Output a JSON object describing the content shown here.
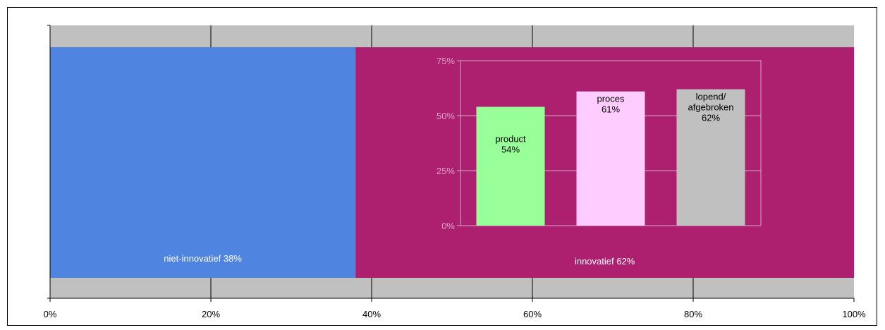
{
  "chart_data": [
    {
      "type": "bar",
      "orientation": "horizontal-stacked",
      "segments": [
        {
          "label": "niet-innovatief 38%",
          "value": 38,
          "color": "#4f84e0"
        },
        {
          "label": "innovatief 62%",
          "value": 62,
          "color": "#ad1f6f"
        }
      ],
      "xlim": [
        0,
        100
      ],
      "x_ticks": [
        "0%",
        "20%",
        "40%",
        "60%",
        "80%",
        "100%"
      ],
      "grid": true,
      "plot_background": "#c0c0c0"
    },
    {
      "type": "bar",
      "categories": [
        "product",
        "proces",
        "lopend/ afgebroken"
      ],
      "values": [
        54,
        61,
        62
      ],
      "labels": [
        [
          "product",
          "54%"
        ],
        [
          "proces",
          "61%"
        ],
        [
          "lopend/",
          "afgebroken",
          "62%"
        ]
      ],
      "colors": [
        "#99ff99",
        "#ffccff",
        "#c0c0c0"
      ],
      "ylim": [
        0,
        75
      ],
      "y_ticks": [
        "0%",
        "25%",
        "50%",
        "75%"
      ],
      "grid": true
    }
  ]
}
